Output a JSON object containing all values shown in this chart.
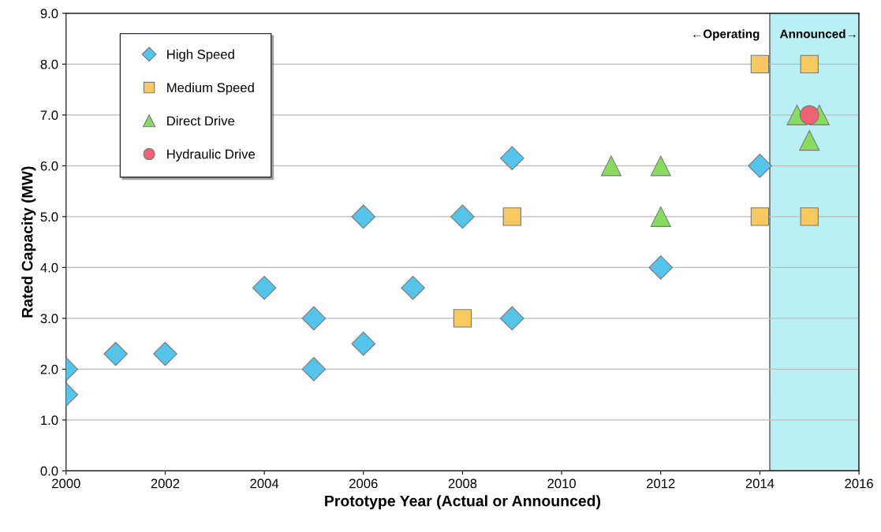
{
  "chart_data": {
    "type": "scatter",
    "xlabel": "Prototype Year (Actual or Announced)",
    "ylabel": "Rated Capacity (MW)",
    "xlim": [
      2000,
      2016
    ],
    "xticks": [
      2000,
      2002,
      2004,
      2006,
      2008,
      2010,
      2012,
      2014,
      2016
    ],
    "ylim": [
      0,
      9
    ],
    "yticks": [
      {
        "value": 0,
        "label": "0.0"
      },
      {
        "value": 1,
        "label": "1.0"
      },
      {
        "value": 2,
        "label": "2.0"
      },
      {
        "value": 3,
        "label": "3.0"
      },
      {
        "value": 4,
        "label": "4.0"
      },
      {
        "value": 5,
        "label": "5.0"
      },
      {
        "value": 6,
        "label": "6.0"
      },
      {
        "value": 7,
        "label": "7.0"
      },
      {
        "value": 8,
        "label": "8.0"
      },
      {
        "value": 9,
        "label": "9.0"
      }
    ],
    "grid": "y",
    "legend": "top left",
    "bands": [
      {
        "axis": "x",
        "from": 2014.2,
        "to": 2016,
        "color": "#b8f0f4"
      }
    ],
    "annotations": [
      "←Operating",
      "Announced→"
    ],
    "series": [
      {
        "name": "High Speed",
        "color": "#55c4ea",
        "marker": "diamond",
        "x": [
          2000,
          2000,
          2001,
          2002,
          2004,
          2005,
          2005,
          2006,
          2006,
          2007,
          2008,
          2009,
          2009,
          2012,
          2014
        ],
        "values": [
          2.0,
          1.5,
          2.3,
          2.3,
          3.6,
          3.0,
          2.0,
          5.0,
          2.5,
          3.6,
          5.0,
          6.15,
          3.0,
          4.0,
          6.0
        ]
      },
      {
        "name": "Medium Speed",
        "color": "#f8c95e",
        "marker": "square",
        "x": [
          2008,
          2009,
          2014,
          2014,
          2015,
          2015
        ],
        "values": [
          3.0,
          5.0,
          8.0,
          5.0,
          8.0,
          5.0
        ]
      },
      {
        "name": "Direct Drive",
        "color": "#86dc5e",
        "marker": "triangle",
        "x": [
          2011,
          2012,
          2012,
          2014.75,
          2015.2,
          2015
        ],
        "values": [
          6.0,
          6.0,
          5.0,
          7.0,
          7.0,
          6.5
        ]
      },
      {
        "name": "Hydraulic Drive",
        "color": "#ef6270",
        "marker": "circle",
        "x": [
          2015
        ],
        "values": [
          7.0
        ]
      }
    ]
  }
}
